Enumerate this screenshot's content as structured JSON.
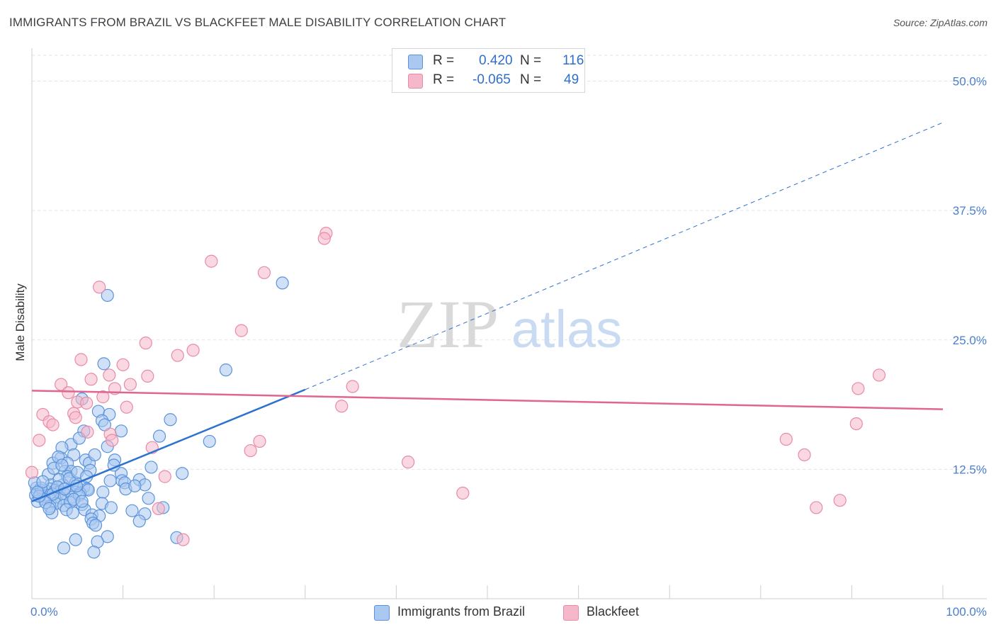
{
  "title": "IMMIGRANTS FROM BRAZIL VS BLACKFEET MALE DISABILITY CORRELATION CHART",
  "source": "Source: ZipAtlas.com",
  "watermark": {
    "zip": "ZIP",
    "atlas": "atlas"
  },
  "legend": {
    "rows": [
      {
        "r_label": "R =",
        "r_value": "0.420",
        "n_label": "N =",
        "n_value": "116",
        "color": "#aac8f0"
      },
      {
        "r_label": "R =",
        "r_value": "-0.065",
        "n_label": "N =",
        "n_value": "49",
        "color": "#f5b8ca"
      }
    ]
  },
  "bottom_legend": [
    {
      "label": "Immigrants from Brazil",
      "color": "#aac8f0"
    },
    {
      "label": "Blackfeet",
      "color": "#f5b8ca"
    }
  ],
  "chart_data": {
    "type": "scatter",
    "title": "IMMIGRANTS FROM BRAZIL VS BLACKFEET MALE DISABILITY CORRELATION CHART",
    "xlabel": "",
    "ylabel": "Male Disability",
    "xlim": [
      0,
      100
    ],
    "ylim": [
      0,
      52.5
    ],
    "y_ticks": [
      12.5,
      25.0,
      37.5,
      50.0
    ],
    "y_tick_labels": [
      "12.5%",
      "25.0%",
      "37.5%",
      "50.0%"
    ],
    "x_tick_labels": [
      "0.0%",
      "100.0%"
    ],
    "grid": true,
    "series": [
      {
        "name": "Immigrants from Brazil",
        "color": "#5b93db",
        "fill": "#aac8f0",
        "trend": {
          "x": [
            0,
            30
          ],
          "y": [
            9.4,
            20.2
          ],
          "dashed_extension_to": [
            100,
            46.0
          ],
          "color": "#2d72cf"
        },
        "points": [
          [
            27.5,
            30.5
          ],
          [
            8.3,
            29.3
          ],
          [
            21.3,
            22.1
          ],
          [
            7.9,
            22.7
          ],
          [
            5.5,
            19.3
          ],
          [
            15.2,
            17.3
          ],
          [
            7.3,
            18.1
          ],
          [
            8.5,
            17.8
          ],
          [
            7.7,
            17.2
          ],
          [
            8.0,
            16.8
          ],
          [
            5.7,
            16.2
          ],
          [
            9.8,
            16.2
          ],
          [
            14.0,
            15.7
          ],
          [
            19.5,
            15.2
          ],
          [
            4.3,
            14.9
          ],
          [
            8.3,
            14.7
          ],
          [
            5.2,
            15.5
          ],
          [
            3.2,
            13.6
          ],
          [
            3.3,
            14.6
          ],
          [
            2.3,
            13.1
          ],
          [
            2.9,
            13.7
          ],
          [
            4.6,
            13.9
          ],
          [
            5.9,
            13.4
          ],
          [
            9.1,
            13.4
          ],
          [
            3.9,
            13.1
          ],
          [
            6.3,
            13.1
          ],
          [
            6.4,
            12.4
          ],
          [
            13.1,
            12.7
          ],
          [
            3.6,
            12.3
          ],
          [
            4.3,
            12.3
          ],
          [
            9.8,
            12.1
          ],
          [
            16.5,
            12.1
          ],
          [
            1.8,
            12.0
          ],
          [
            3.9,
            11.8
          ],
          [
            8.6,
            11.4
          ],
          [
            9.9,
            11.4
          ],
          [
            10.2,
            11.2
          ],
          [
            11.8,
            11.5
          ],
          [
            12.4,
            11.0
          ],
          [
            2.1,
            11.0
          ],
          [
            3.4,
            11.0
          ],
          [
            4.8,
            11.2
          ],
          [
            5.7,
            10.8
          ],
          [
            6.1,
            10.6
          ],
          [
            0.5,
            10.7
          ],
          [
            1.0,
            10.5
          ],
          [
            1.5,
            10.4
          ],
          [
            2.0,
            10.6
          ],
          [
            2.6,
            10.5
          ],
          [
            3.0,
            10.3
          ],
          [
            3.5,
            10.2
          ],
          [
            4.0,
            10.4
          ],
          [
            4.8,
            10.3
          ],
          [
            5.3,
            10.2
          ],
          [
            6.2,
            10.5
          ],
          [
            7.8,
            10.3
          ],
          [
            0.4,
            10.0
          ],
          [
            0.9,
            10.1
          ],
          [
            1.3,
            9.9
          ],
          [
            1.8,
            10.0
          ],
          [
            2.5,
            9.8
          ],
          [
            3.2,
            9.7
          ],
          [
            4.4,
            9.8
          ],
          [
            5.2,
            10.0
          ],
          [
            0.6,
            9.4
          ],
          [
            1.4,
            9.6
          ],
          [
            2.6,
            9.2
          ],
          [
            3.5,
            9.0
          ],
          [
            4.2,
            9.3
          ],
          [
            5.5,
            9.1
          ],
          [
            2.0,
            8.9
          ],
          [
            3.8,
            8.6
          ],
          [
            2.2,
            8.3
          ],
          [
            4.5,
            8.3
          ],
          [
            5.8,
            8.6
          ],
          [
            6.6,
            8.1
          ],
          [
            7.4,
            8.0
          ],
          [
            6.5,
            7.7
          ],
          [
            11.0,
            8.5
          ],
          [
            14.4,
            8.8
          ],
          [
            12.4,
            8.2
          ],
          [
            11.8,
            7.5
          ],
          [
            6.7,
            7.3
          ],
          [
            7.0,
            7.1
          ],
          [
            8.3,
            6.0
          ],
          [
            4.8,
            5.7
          ],
          [
            7.2,
            5.5
          ],
          [
            15.9,
            5.9
          ],
          [
            3.5,
            4.9
          ],
          [
            6.8,
            4.5
          ],
          [
            1.0,
            10.7
          ],
          [
            2.3,
            10.1
          ],
          [
            3.0,
            11.5
          ],
          [
            4.1,
            11.6
          ],
          [
            5.0,
            12.2
          ],
          [
            6.0,
            11.8
          ],
          [
            0.3,
            11.2
          ],
          [
            1.2,
            11.3
          ],
          [
            2.8,
            10.8
          ],
          [
            3.6,
            10.6
          ],
          [
            4.6,
            9.6
          ],
          [
            5.5,
            9.4
          ],
          [
            1.5,
            9.3
          ],
          [
            0.8,
            9.9
          ],
          [
            2.4,
            12.6
          ],
          [
            3.3,
            12.9
          ],
          [
            6.9,
            13.9
          ],
          [
            9.0,
            12.9
          ],
          [
            10.3,
            10.6
          ],
          [
            11.3,
            10.9
          ],
          [
            7.7,
            9.2
          ],
          [
            8.7,
            8.8
          ],
          [
            12.8,
            9.7
          ],
          [
            1.9,
            8.7
          ],
          [
            0.6,
            10.3
          ],
          [
            4.9,
            10.9
          ]
        ]
      },
      {
        "name": "Blackfeet",
        "color": "#e88aa8",
        "fill": "#f5b8ca",
        "trend": {
          "x": [
            0,
            100
          ],
          "y": [
            20.1,
            18.3
          ],
          "color": "#e06690"
        },
        "points": [
          [
            32.3,
            35.3
          ],
          [
            32.1,
            34.8
          ],
          [
            19.7,
            32.6
          ],
          [
            25.5,
            31.5
          ],
          [
            7.4,
            30.1
          ],
          [
            23.0,
            25.9
          ],
          [
            12.5,
            24.7
          ],
          [
            17.7,
            24.0
          ],
          [
            16.0,
            23.5
          ],
          [
            5.4,
            23.1
          ],
          [
            10.0,
            22.6
          ],
          [
            8.5,
            21.6
          ],
          [
            12.7,
            21.5
          ],
          [
            6.5,
            21.2
          ],
          [
            10.8,
            20.7
          ],
          [
            3.2,
            20.7
          ],
          [
            35.2,
            20.5
          ],
          [
            9.1,
            20.3
          ],
          [
            4.0,
            19.9
          ],
          [
            7.8,
            19.5
          ],
          [
            34.0,
            18.6
          ],
          [
            10.4,
            18.5
          ],
          [
            4.6,
            17.9
          ],
          [
            1.2,
            17.8
          ],
          [
            4.8,
            17.5
          ],
          [
            1.9,
            17.1
          ],
          [
            2.3,
            16.8
          ],
          [
            90.7,
            20.3
          ],
          [
            93.0,
            21.6
          ],
          [
            90.5,
            16.9
          ],
          [
            6.1,
            16.1
          ],
          [
            8.6,
            15.9
          ],
          [
            0.8,
            15.3
          ],
          [
            8.8,
            15.3
          ],
          [
            25.0,
            15.2
          ],
          [
            82.8,
            15.4
          ],
          [
            13.2,
            14.6
          ],
          [
            24.0,
            14.3
          ],
          [
            84.8,
            13.9
          ],
          [
            41.3,
            13.2
          ],
          [
            0.0,
            12.2
          ],
          [
            14.6,
            11.8
          ],
          [
            47.3,
            10.2
          ],
          [
            88.7,
            9.5
          ],
          [
            86.1,
            8.8
          ],
          [
            13.9,
            8.7
          ],
          [
            16.6,
            5.7
          ],
          [
            5.0,
            19.0
          ],
          [
            6.0,
            18.9
          ]
        ]
      }
    ]
  }
}
